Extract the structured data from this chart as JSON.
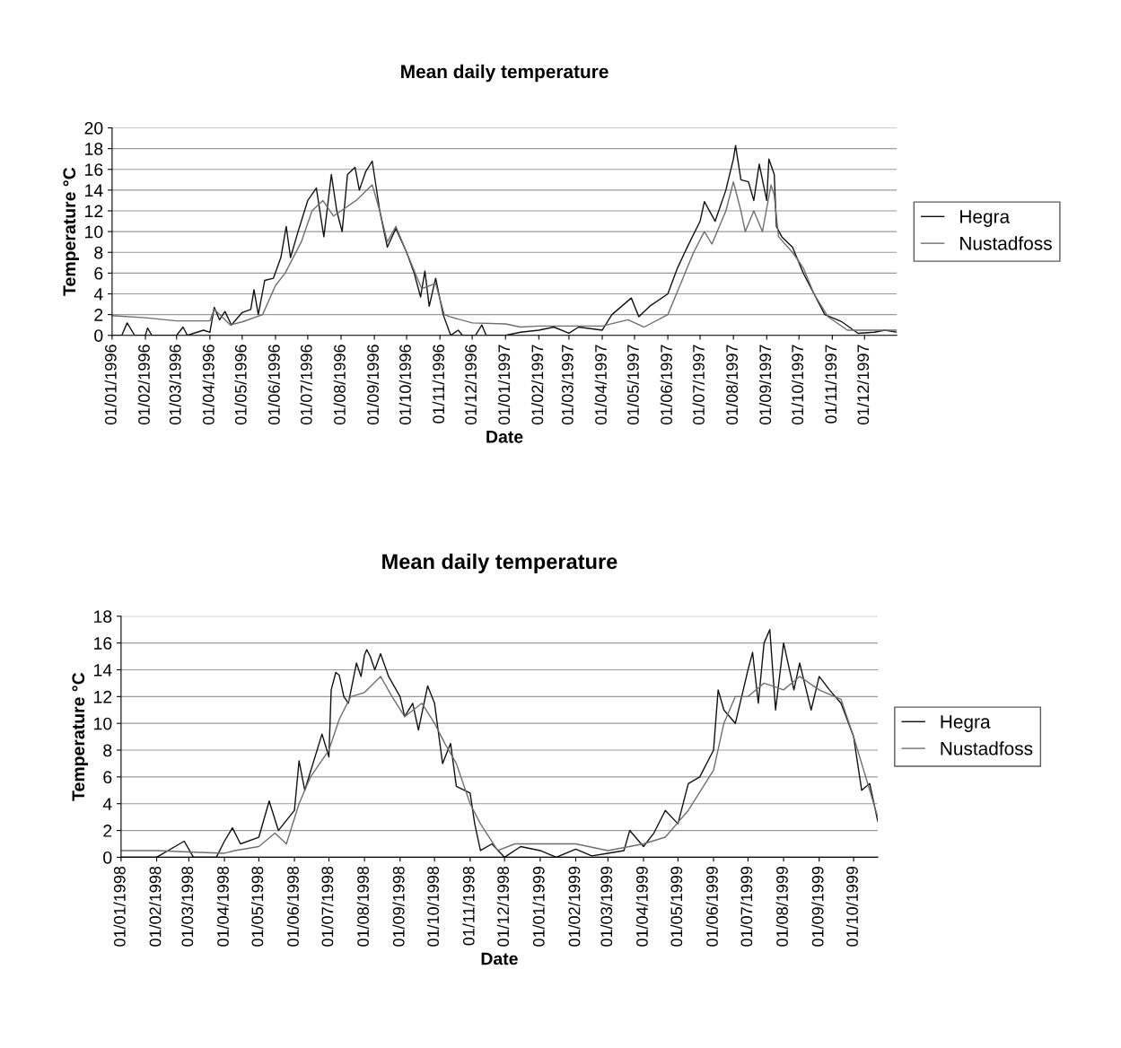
{
  "chart_data": [
    {
      "type": "line",
      "title": "Mean daily temperature",
      "xlabel": "Date",
      "ylabel": "Temperature °C",
      "xlim": [
        "1996-01-01",
        "1997-12-31"
      ],
      "ylim": [
        0,
        20
      ],
      "yticks": [
        0,
        2,
        4,
        6,
        8,
        10,
        12,
        14,
        16,
        18,
        20
      ],
      "xticks": [
        {
          "value": "1996-01-01",
          "label": "01/01/1996"
        },
        {
          "value": "1996-02-01",
          "label": "01/02/1996"
        },
        {
          "value": "1996-03-01",
          "label": "01/03/1996"
        },
        {
          "value": "1996-04-01",
          "label": "01/04/1996"
        },
        {
          "value": "1996-05-01",
          "label": "01/05/1996"
        },
        {
          "value": "1996-06-01",
          "label": "01/06/1996"
        },
        {
          "value": "1996-07-01",
          "label": "01/07/1996"
        },
        {
          "value": "1996-08-01",
          "label": "01/08/1996"
        },
        {
          "value": "1996-09-01",
          "label": "01/09/1996"
        },
        {
          "value": "1996-10-01",
          "label": "01/10/1996"
        },
        {
          "value": "1996-11-01",
          "label": "01/11/1996"
        },
        {
          "value": "1996-12-01",
          "label": "01/12/1996"
        },
        {
          "value": "1997-01-01",
          "label": "01/01/1997"
        },
        {
          "value": "1997-02-01",
          "label": "01/02/1997"
        },
        {
          "value": "1997-03-01",
          "label": "01/03/1997"
        },
        {
          "value": "1997-04-01",
          "label": "01/04/1997"
        },
        {
          "value": "1997-05-01",
          "label": "01/05/1997"
        },
        {
          "value": "1997-06-01",
          "label": "01/06/1997"
        },
        {
          "value": "1997-07-01",
          "label": "01/07/1997"
        },
        {
          "value": "1997-08-01",
          "label": "01/08/1997"
        },
        {
          "value": "1997-09-01",
          "label": "01/09/1997"
        },
        {
          "value": "1997-10-01",
          "label": "01/10/1997"
        },
        {
          "value": "1997-11-01",
          "label": "01/11/1997"
        },
        {
          "value": "1997-12-01",
          "label": "01/12/1997"
        }
      ],
      "grid": "y",
      "legend": "right",
      "marker": "none",
      "line_style": "solid",
      "series": [
        {
          "name": "Hegra",
          "color": "#111111",
          "x": [
            "1996-01-01",
            "1996-01-10",
            "1996-01-15",
            "1996-01-22",
            "1996-02-01",
            "1996-02-03",
            "1996-02-07",
            "1996-03-01",
            "1996-03-07",
            "1996-03-11",
            "1996-03-26",
            "1996-04-01",
            "1996-04-05",
            "1996-04-10",
            "1996-04-15",
            "1996-04-21",
            "1996-05-01",
            "1996-05-09",
            "1996-05-12",
            "1996-05-16",
            "1996-05-22",
            "1996-05-30",
            "1996-06-06",
            "1996-06-11",
            "1996-06-15",
            "1996-06-22",
            "1996-07-01",
            "1996-07-09",
            "1996-07-16",
            "1996-07-23",
            "1996-07-28",
            "1996-08-02",
            "1996-08-07",
            "1996-08-14",
            "1996-08-18",
            "1996-08-24",
            "1996-08-30",
            "1996-09-06",
            "1996-09-13",
            "1996-09-21",
            "1996-10-01",
            "1996-10-08",
            "1996-10-14",
            "1996-10-18",
            "1996-10-22",
            "1996-10-28",
            "1996-11-04",
            "1996-11-11",
            "1996-11-18",
            "1996-11-22",
            "1996-12-04",
            "1996-12-10",
            "1996-12-14",
            "1997-01-01",
            "1997-01-15",
            "1997-02-01",
            "1997-02-15",
            "1997-03-01",
            "1997-03-10",
            "1997-04-01",
            "1997-04-10",
            "1997-04-28",
            "1997-05-05",
            "1997-05-15",
            "1997-06-01",
            "1997-06-10",
            "1997-06-20",
            "1997-07-01",
            "1997-07-05",
            "1997-07-15",
            "1997-07-25",
            "1997-08-01",
            "1997-08-03",
            "1997-08-08",
            "1997-08-15",
            "1997-08-20",
            "1997-08-25",
            "1997-09-01",
            "1997-09-03",
            "1997-09-08",
            "1997-09-10",
            "1997-09-15",
            "1997-09-25",
            "1997-10-05",
            "1997-10-15",
            "1997-10-25",
            "1997-11-10",
            "1997-11-25",
            "1997-12-10",
            "1997-12-20",
            "1997-12-31"
          ],
          "values": [
            0,
            0,
            1.2,
            0,
            0,
            0.7,
            0,
            0,
            0.8,
            0,
            0.5,
            0.3,
            2.7,
            1.5,
            2.3,
            1.0,
            2.2,
            2.5,
            4.4,
            2.0,
            5.3,
            5.5,
            7.5,
            10.5,
            7.5,
            10,
            13,
            14.2,
            9.5,
            15.5,
            12,
            10,
            15.5,
            16.2,
            14,
            15.8,
            16.8,
            12,
            8.5,
            10.3,
            8,
            6,
            3.7,
            6.2,
            2.8,
            5.5,
            2,
            0,
            0.5,
            0,
            0,
            1.0,
            0,
            0,
            0.3,
            0.5,
            0.8,
            0.2,
            0.8,
            0.5,
            2.0,
            3.6,
            1.8,
            2.8,
            4,
            6.5,
            8.7,
            11,
            12.9,
            11,
            14,
            17,
            18.3,
            15,
            14.8,
            13,
            16.5,
            13,
            17,
            15.5,
            10.5,
            9.5,
            8.5,
            6,
            4,
            2,
            1.3,
            0.2,
            0.3,
            0.5,
            0.3
          ]
        },
        {
          "name": "Nustadfoss",
          "color": "#6e6e6e",
          "x": [
            "1996-01-01",
            "1996-02-01",
            "1996-03-01",
            "1996-04-01",
            "1996-04-05",
            "1996-04-20",
            "1996-05-01",
            "1996-05-20",
            "1996-06-01",
            "1996-06-10",
            "1996-06-25",
            "1996-07-05",
            "1996-07-15",
            "1996-07-25",
            "1996-08-01",
            "1996-08-15",
            "1996-08-30",
            "1996-09-06",
            "1996-09-13",
            "1996-09-21",
            "1996-10-01",
            "1996-10-15",
            "1996-10-28",
            "1996-11-05",
            "1996-11-10",
            "1996-12-01",
            "1997-01-01",
            "1997-01-15",
            "1997-02-01",
            "1997-03-01",
            "1997-04-01",
            "1997-04-25",
            "1997-05-10",
            "1997-06-01",
            "1997-06-15",
            "1997-06-25",
            "1997-07-05",
            "1997-07-12",
            "1997-07-25",
            "1997-08-01",
            "1997-08-08",
            "1997-08-12",
            "1997-08-20",
            "1997-08-28",
            "1997-09-05",
            "1997-09-08",
            "1997-09-12",
            "1997-09-25",
            "1997-10-05",
            "1997-10-15",
            "1997-10-28",
            "1997-11-15",
            "1997-12-01",
            "1997-12-31"
          ],
          "values": [
            1.9,
            1.7,
            1.4,
            1.4,
            2.5,
            1.0,
            1.3,
            2.0,
            4.8,
            6,
            9,
            12,
            13,
            11.5,
            12,
            13,
            14.5,
            12,
            9,
            10.5,
            8,
            4.5,
            5,
            2,
            1.8,
            1.2,
            1.1,
            0.8,
            0.9,
            0.9,
            0.9,
            1.5,
            0.8,
            2,
            5.5,
            8,
            10,
            8.8,
            12,
            14.8,
            12,
            10,
            12,
            10,
            14.5,
            13.5,
            9.5,
            8,
            6.5,
            4,
            1.8,
            0.5,
            0.5,
            0.5
          ]
        }
      ]
    },
    {
      "type": "line",
      "title": "Mean daily temperature",
      "xlabel": "Date",
      "ylabel": "Temperature °C",
      "xlim": [
        "1998-01-01",
        "1999-10-22"
      ],
      "ylim": [
        0,
        18
      ],
      "yticks": [
        0,
        2,
        4,
        6,
        8,
        10,
        12,
        14,
        16,
        18
      ],
      "xticks": [
        {
          "value": "1998-01-01",
          "label": "01/01/1998"
        },
        {
          "value": "1998-02-01",
          "label": "01/02/1998"
        },
        {
          "value": "1998-03-01",
          "label": "01/03/1998"
        },
        {
          "value": "1998-04-01",
          "label": "01/04/1998"
        },
        {
          "value": "1998-05-01",
          "label": "01/05/1998"
        },
        {
          "value": "1998-06-01",
          "label": "01/06/1998"
        },
        {
          "value": "1998-07-01",
          "label": "01/07/1998"
        },
        {
          "value": "1998-08-01",
          "label": "01/08/1998"
        },
        {
          "value": "1998-09-01",
          "label": "01/09/1998"
        },
        {
          "value": "1998-10-01",
          "label": "01/10/1998"
        },
        {
          "value": "1998-11-01",
          "label": "01/11/1998"
        },
        {
          "value": "1998-12-01",
          "label": "01/12/1998"
        },
        {
          "value": "1999-01-01",
          "label": "01/01/1999"
        },
        {
          "value": "1999-02-01",
          "label": "01/02/1999"
        },
        {
          "value": "1999-03-01",
          "label": "01/03/1999"
        },
        {
          "value": "1999-04-01",
          "label": "01/04/1999"
        },
        {
          "value": "1999-05-01",
          "label": "01/05/1999"
        },
        {
          "value": "1999-06-01",
          "label": "01/06/1999"
        },
        {
          "value": "1999-07-01",
          "label": "01/07/1999"
        },
        {
          "value": "1999-08-01",
          "label": "01/08/1999"
        },
        {
          "value": "1999-09-01",
          "label": "01/09/1999"
        },
        {
          "value": "1999-10-01",
          "label": "01/10/1999"
        }
      ],
      "grid": "y",
      "legend": "right",
      "marker": "none",
      "line_style": "solid",
      "series": [
        {
          "name": "Hegra",
          "color": "#111111",
          "x": [
            "1998-01-01",
            "1998-02-01",
            "1998-02-25",
            "1998-03-05",
            "1998-03-25",
            "1998-04-01",
            "1998-04-08",
            "1998-04-15",
            "1998-05-01",
            "1998-05-10",
            "1998-05-18",
            "1998-06-01",
            "1998-06-05",
            "1998-06-10",
            "1998-06-25",
            "1998-07-01",
            "1998-07-03",
            "1998-07-07",
            "1998-07-10",
            "1998-07-14",
            "1998-07-18",
            "1998-07-25",
            "1998-07-29",
            "1998-08-01",
            "1998-08-03",
            "1998-08-06",
            "1998-08-10",
            "1998-08-15",
            "1998-08-22",
            "1998-09-01",
            "1998-09-05",
            "1998-09-12",
            "1998-09-17",
            "1998-09-25",
            "1998-10-01",
            "1998-10-08",
            "1998-10-15",
            "1998-10-20",
            "1998-11-01",
            "1998-11-05",
            "1998-11-10",
            "1998-11-20",
            "1998-12-01",
            "1998-12-15",
            "1999-01-01",
            "1999-01-15",
            "1999-02-01",
            "1999-02-15",
            "1999-03-01",
            "1999-03-15",
            "1999-03-20",
            "1999-04-01",
            "1999-04-10",
            "1999-04-20",
            "1999-05-01",
            "1999-05-10",
            "1999-05-20",
            "1999-06-01",
            "1999-06-05",
            "1999-06-10",
            "1999-06-20",
            "1999-07-01",
            "1999-07-05",
            "1999-07-10",
            "1999-07-15",
            "1999-07-20",
            "1999-07-25",
            "1999-08-01",
            "1999-08-10",
            "1999-08-15",
            "1999-08-25",
            "1999-09-01",
            "1999-09-10",
            "1999-09-20",
            "1999-10-01",
            "1999-10-08",
            "1999-10-15",
            "1999-10-22"
          ],
          "values": [
            0,
            0,
            1.2,
            0,
            0,
            1.2,
            2.2,
            1.0,
            1.5,
            4.2,
            2.0,
            3.5,
            7.2,
            5.0,
            9.2,
            7.5,
            12.5,
            13.8,
            13.6,
            12,
            11.5,
            14.5,
            13.5,
            15.1,
            15.5,
            15.0,
            14,
            15.2,
            13.5,
            12,
            10.5,
            11.5,
            9.5,
            12.8,
            11.5,
            7,
            8.5,
            5.3,
            4.8,
            2.5,
            0.5,
            1.0,
            0,
            0.8,
            0.5,
            0,
            0.6,
            0.1,
            0.3,
            0.5,
            2.0,
            0.8,
            1.8,
            3.5,
            2.5,
            5.5,
            6,
            8,
            12.5,
            11,
            10,
            14,
            15.3,
            11.5,
            16,
            17,
            11,
            16,
            12.5,
            14.5,
            11,
            13.5,
            12.5,
            11.5,
            9,
            5,
            5.5,
            2.7
          ]
        },
        {
          "name": "Nustadfoss",
          "color": "#6e6e6e",
          "x": [
            "1998-01-01",
            "1998-02-01",
            "1998-03-01",
            "1998-04-01",
            "1998-04-10",
            "1998-05-01",
            "1998-05-15",
            "1998-05-25",
            "1998-06-05",
            "1998-06-15",
            "1998-07-01",
            "1998-07-10",
            "1998-07-20",
            "1998-08-01",
            "1998-08-15",
            "1998-08-25",
            "1998-09-05",
            "1998-09-20",
            "1998-10-01",
            "1998-10-10",
            "1998-10-20",
            "1998-11-01",
            "1998-11-10",
            "1998-11-25",
            "1998-12-10",
            "1999-01-01",
            "1999-02-01",
            "1999-03-01",
            "1999-04-01",
            "1999-04-20",
            "1999-05-10",
            "1999-06-01",
            "1999-06-10",
            "1999-06-20",
            "1999-07-01",
            "1999-07-15",
            "1999-08-01",
            "1999-08-15",
            "1999-09-01",
            "1999-09-20",
            "1999-10-01",
            "1999-10-15",
            "1999-10-22"
          ],
          "values": [
            0.5,
            0.5,
            0.4,
            0.3,
            0.5,
            0.8,
            1.8,
            1.0,
            4,
            6,
            8,
            10.3,
            12,
            12.3,
            13.5,
            12,
            10.5,
            11.5,
            10,
            8.5,
            7,
            4,
            2.5,
            0.5,
            1.0,
            1.0,
            1.0,
            0.5,
            1.0,
            1.5,
            3.5,
            6.5,
            10,
            12,
            12,
            13,
            12.5,
            13.5,
            12.5,
            11.8,
            9,
            5,
            3
          ]
        }
      ]
    }
  ]
}
